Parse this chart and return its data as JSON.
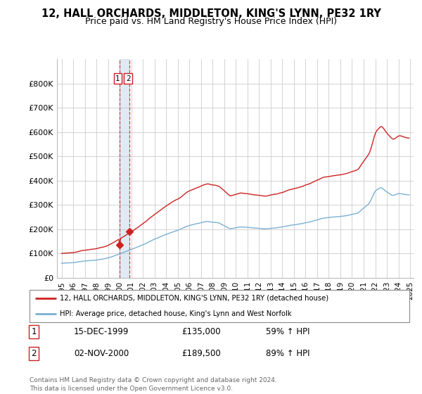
{
  "title": "12, HALL ORCHARDS, MIDDLETON, KING'S LYNN, PE32 1RY",
  "subtitle": "Price paid vs. HM Land Registry's House Price Index (HPI)",
  "title_fontsize": 10.5,
  "subtitle_fontsize": 9,
  "red_line_color": "#cc2222",
  "blue_line_color": "#7ab0d4",
  "sale1_date_label": "15-DEC-1999",
  "sale1_price_label": "£135,000",
  "sale1_hpi_label": "59% ↑ HPI",
  "sale2_date_label": "02-NOV-2000",
  "sale2_price_label": "£189,500",
  "sale2_hpi_label": "89% ↑ HPI",
  "sale1_year": 1999.96,
  "sale2_year": 2000.84,
  "sale1_price": 135000,
  "sale2_price": 189500,
  "legend_line1": "12, HALL ORCHARDS, MIDDLETON, KING'S LYNN, PE32 1RY (detached house)",
  "legend_line2": "HPI: Average price, detached house, King's Lynn and West Norfolk",
  "footer": "Contains HM Land Registry data © Crown copyright and database right 2024.\nThis data is licensed under the Open Government Licence v3.0.",
  "ylim": [
    0,
    900000
  ],
  "yticks": [
    0,
    100000,
    200000,
    300000,
    400000,
    500000,
    600000,
    700000,
    800000
  ],
  "ytick_labels": [
    "£0",
    "£100K",
    "£200K",
    "£300K",
    "£400K",
    "£500K",
    "£600K",
    "£700K",
    "£800K"
  ],
  "background_color": "#ffffff",
  "grid_color": "#cccccc"
}
